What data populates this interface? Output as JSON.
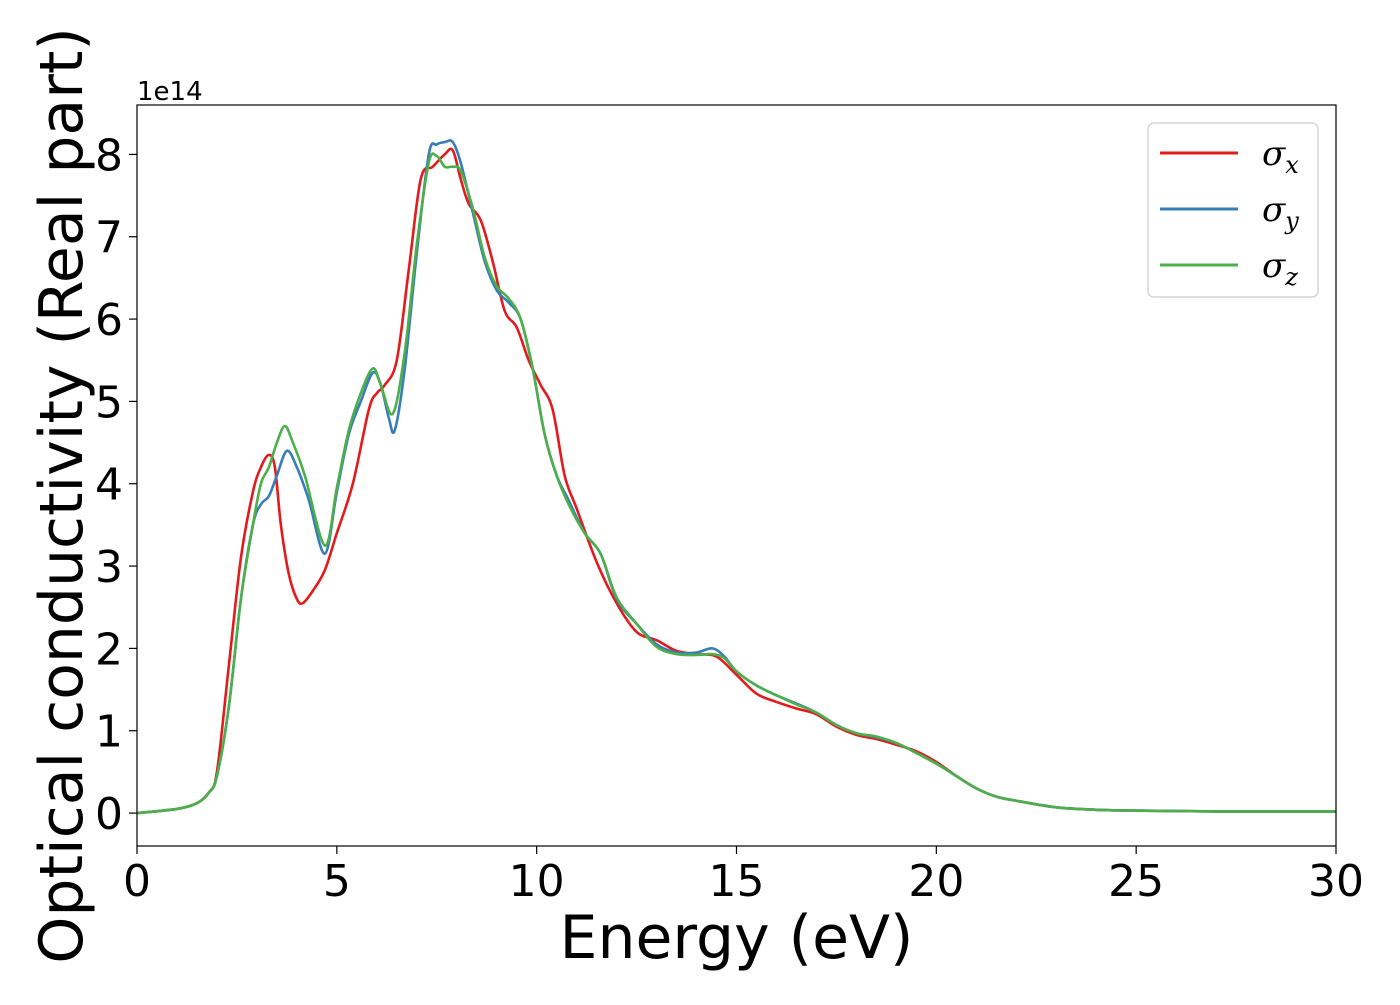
{
  "chart_data": {
    "type": "line",
    "title": "",
    "xlabel": "Energy (eV)",
    "ylabel": "Optical conductivity (Real part)",
    "y_offset_label": "1e14",
    "xlim": [
      0,
      30
    ],
    "ylim": [
      -0.4,
      8.6
    ],
    "x_ticks": [
      0,
      5,
      10,
      15,
      20,
      25,
      30
    ],
    "x_tick_labels": [
      "0",
      "5",
      "10",
      "15",
      "20",
      "25",
      "30"
    ],
    "y_ticks": [
      0,
      1,
      2,
      3,
      4,
      5,
      6,
      7,
      8
    ],
    "y_tick_labels": [
      "0",
      "1",
      "2",
      "3",
      "4",
      "5",
      "6",
      "7",
      "8"
    ],
    "grid": false,
    "legend_position": "top-right",
    "series": [
      {
        "name": "σ",
        "sub": "x",
        "color": "#e41a1c",
        "x": [
          0,
          1,
          1.5,
          1.8,
          2.0,
          2.3,
          2.6,
          2.9,
          3.1,
          3.3,
          3.45,
          3.6,
          3.8,
          4.0,
          4.15,
          4.4,
          4.7,
          5.0,
          5.4,
          5.8,
          6.0,
          6.2,
          6.5,
          6.8,
          7.1,
          7.4,
          7.7,
          7.9,
          8.1,
          8.3,
          8.6,
          8.9,
          9.2,
          9.5,
          9.8,
          10.1,
          10.4,
          10.7,
          11.0,
          11.5,
          12.0,
          12.5,
          13.0,
          13.5,
          14.0,
          14.5,
          15.0,
          15.5,
          16.0,
          16.5,
          17.0,
          17.5,
          18.0,
          18.5,
          19.0,
          19.5,
          20.0,
          20.5,
          21.0,
          21.5,
          22.0,
          23.0,
          24.0,
          25.0,
          27.0,
          30.0
        ],
        "y": [
          0,
          0.05,
          0.12,
          0.25,
          0.5,
          1.8,
          3.1,
          3.9,
          4.2,
          4.35,
          4.2,
          3.5,
          2.9,
          2.6,
          2.55,
          2.7,
          2.95,
          3.4,
          4.0,
          4.9,
          5.1,
          5.2,
          5.5,
          6.6,
          7.7,
          7.85,
          8.0,
          8.05,
          7.7,
          7.4,
          7.2,
          6.7,
          6.1,
          5.9,
          5.5,
          5.2,
          4.9,
          4.1,
          3.7,
          3.05,
          2.55,
          2.2,
          2.1,
          1.97,
          1.93,
          1.9,
          1.68,
          1.45,
          1.35,
          1.27,
          1.2,
          1.05,
          0.95,
          0.9,
          0.83,
          0.75,
          0.62,
          0.45,
          0.3,
          0.2,
          0.15,
          0.07,
          0.04,
          0.03,
          0.02,
          0.02
        ]
      },
      {
        "name": "σ",
        "sub": "y",
        "color": "#377eb8",
        "x": [
          0,
          1,
          1.5,
          1.8,
          2.0,
          2.3,
          2.6,
          2.9,
          3.1,
          3.3,
          3.5,
          3.75,
          4.0,
          4.3,
          4.7,
          5.0,
          5.3,
          5.6,
          5.9,
          6.1,
          6.3,
          6.45,
          6.7,
          7.0,
          7.3,
          7.5,
          7.7,
          7.9,
          8.1,
          8.4,
          8.7,
          9.0,
          9.3,
          9.6,
          9.9,
          10.2,
          10.5,
          10.8,
          11.2,
          11.6,
          12.0,
          12.5,
          13.0,
          13.5,
          14.0,
          14.4,
          14.7,
          15.0,
          15.5,
          16.0,
          16.5,
          17.0,
          17.5,
          18.0,
          18.5,
          19.0,
          19.5,
          20.0,
          20.5,
          21.0,
          21.5,
          22.0,
          23.0,
          24.0,
          25.0,
          27.0,
          30.0
        ],
        "y": [
          0,
          0.05,
          0.12,
          0.25,
          0.45,
          1.3,
          2.6,
          3.5,
          3.75,
          3.85,
          4.1,
          4.4,
          4.2,
          3.8,
          3.15,
          3.9,
          4.6,
          5.0,
          5.35,
          5.2,
          4.8,
          4.65,
          5.4,
          6.8,
          8.0,
          8.12,
          8.15,
          8.15,
          7.9,
          7.3,
          6.7,
          6.35,
          6.2,
          6.0,
          5.4,
          4.6,
          4.1,
          3.8,
          3.4,
          3.15,
          2.6,
          2.3,
          2.05,
          1.95,
          1.95,
          2.0,
          1.9,
          1.72,
          1.55,
          1.43,
          1.33,
          1.22,
          1.07,
          0.97,
          0.92,
          0.85,
          0.73,
          0.6,
          0.45,
          0.3,
          0.2,
          0.15,
          0.07,
          0.04,
          0.03,
          0.02,
          0.02
        ]
      },
      {
        "name": "σ",
        "sub": "z",
        "color": "#4daf4a",
        "x": [
          0,
          1,
          1.5,
          1.8,
          2.0,
          2.3,
          2.6,
          2.9,
          3.1,
          3.3,
          3.5,
          3.7,
          3.9,
          4.2,
          4.7,
          5.0,
          5.3,
          5.6,
          5.9,
          6.1,
          6.4,
          6.7,
          7.0,
          7.3,
          7.5,
          7.7,
          7.9,
          8.1,
          8.4,
          8.7,
          9.0,
          9.3,
          9.6,
          9.9,
          10.2,
          10.5,
          10.8,
          11.2,
          11.6,
          12.0,
          12.5,
          13.0,
          13.5,
          14.0,
          14.4,
          14.7,
          15.0,
          15.5,
          16.0,
          16.5,
          17.0,
          17.5,
          18.0,
          18.5,
          19.0,
          19.5,
          20.0,
          20.5,
          21.0,
          21.5,
          22.0,
          23.0,
          24.0,
          25.0,
          27.0,
          30.0
        ],
        "y": [
          0,
          0.05,
          0.12,
          0.25,
          0.45,
          1.3,
          2.6,
          3.5,
          4.0,
          4.2,
          4.5,
          4.7,
          4.5,
          4.1,
          3.25,
          3.95,
          4.65,
          5.1,
          5.4,
          5.2,
          4.85,
          5.6,
          6.9,
          7.9,
          7.98,
          7.85,
          7.85,
          7.8,
          7.35,
          6.75,
          6.4,
          6.25,
          6.0,
          5.4,
          4.6,
          4.1,
          3.75,
          3.4,
          3.15,
          2.62,
          2.3,
          2.02,
          1.93,
          1.92,
          1.93,
          1.88,
          1.72,
          1.55,
          1.43,
          1.32,
          1.22,
          1.07,
          0.97,
          0.93,
          0.85,
          0.73,
          0.6,
          0.45,
          0.3,
          0.2,
          0.15,
          0.07,
          0.04,
          0.03,
          0.02,
          0.02
        ]
      }
    ]
  }
}
